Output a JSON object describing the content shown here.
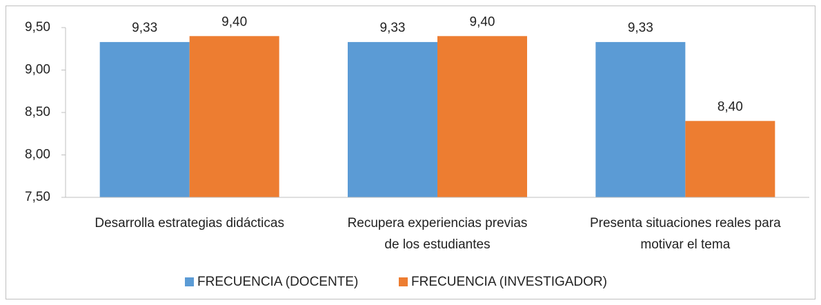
{
  "chart_data": {
    "type": "bar",
    "categories": [
      [
        "Desarrolla estrategias didácticas"
      ],
      [
        "Recupera experiencias previas",
        "de los estudiantes"
      ],
      [
        "Presenta situaciones reales para",
        "motivar el tema"
      ]
    ],
    "series": [
      {
        "name": "FRECUENCIA (DOCENTE)",
        "color": "#5b9bd5",
        "values": [
          9.33,
          9.33,
          9.33
        ],
        "value_labels": [
          "9,33",
          "9,33",
          "9,33"
        ]
      },
      {
        "name": "FRECUENCIA (INVESTIGADOR)",
        "color": "#ed7d31",
        "values": [
          9.4,
          9.4,
          8.4
        ],
        "value_labels": [
          "9,40",
          "9,40",
          "8,40"
        ]
      }
    ],
    "ylim": [
      7.5,
      9.5
    ],
    "yticks": [
      {
        "value": 7.5,
        "label": "7,50"
      },
      {
        "value": 8.0,
        "label": "8,00"
      },
      {
        "value": 8.5,
        "label": "8,50"
      },
      {
        "value": 9.0,
        "label": "9,00"
      },
      {
        "value": 9.5,
        "label": "9,50"
      }
    ],
    "grid": false,
    "legend": "bottom"
  }
}
